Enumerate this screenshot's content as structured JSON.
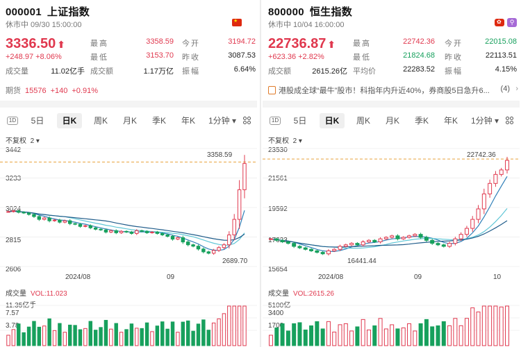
{
  "left": {
    "code": "000001",
    "name": "上证指数",
    "status_time": "休市中 09/30 15:00:00",
    "price": "3336.50",
    "change": "+248.97 +8.06%",
    "stats": [
      {
        "label": "最高",
        "value": "3358.59",
        "color": "red"
      },
      {
        "label": "今开",
        "value": "3194.72",
        "color": "red"
      },
      {
        "label": "最低",
        "value": "3153.70",
        "color": "red"
      },
      {
        "label": "昨收",
        "value": "3087.53",
        "color": "dark"
      },
      {
        "label": "成交量",
        "value": "11.02亿手",
        "color": "dark"
      },
      {
        "label": "成交额",
        "value": "1.17万亿",
        "color": "dark"
      },
      {
        "label": "振幅",
        "value": "6.64%",
        "color": "dark"
      }
    ],
    "futures": {
      "label": "期货",
      "price": "15576",
      "change": "+140",
      "pct": "+0.91%"
    },
    "chart_data": {
      "type": "candlestick",
      "title": "",
      "adjust_label": "不复权",
      "overlay_label": "2",
      "y_ticks": [
        3442,
        3233,
        3024,
        2815,
        2606
      ],
      "x_ticks": [
        "2024/08",
        "09"
      ],
      "annotations": [
        {
          "label": "3358.59",
          "kind": "high"
        },
        {
          "label": "2689.70",
          "kind": "low"
        }
      ],
      "close_series": [
        2995,
        3000,
        2990,
        2985,
        2975,
        2960,
        2940,
        2950,
        2930,
        2935,
        2920,
        2930,
        2910,
        2905,
        2890,
        2895,
        2880,
        2870,
        2865,
        2850,
        2860,
        2845,
        2855,
        2850,
        2840,
        2860,
        2855,
        2845,
        2850,
        2840,
        2830,
        2820,
        2800,
        2810,
        2780,
        2760,
        2750,
        2730,
        2710,
        2700,
        2720,
        2740,
        2760,
        2830,
        2940,
        3150,
        3336
      ],
      "volume": {
        "label": "成交量",
        "vol": "VOL:11.023",
        "y_ticks": [
          "11.35亿手",
          "7.57",
          "3.78"
        ]
      }
    }
  },
  "right": {
    "code": "800000",
    "name": "恒生指数",
    "status_time": "休市中 10/04 16:00:00",
    "price": "22736.87",
    "change": "+623.36 +2.82%",
    "stats": [
      {
        "label": "最高",
        "value": "22742.36",
        "color": "red"
      },
      {
        "label": "今开",
        "value": "22015.08",
        "color": "green"
      },
      {
        "label": "最低",
        "value": "21824.68",
        "color": "green"
      },
      {
        "label": "昨收",
        "value": "22113.51",
        "color": "dark"
      },
      {
        "label": "成交额",
        "value": "2615.26亿",
        "color": "dark"
      },
      {
        "label": "平均价",
        "value": "22283.52",
        "color": "dark"
      },
      {
        "label": "振幅",
        "value": "4.15%",
        "color": "dark"
      }
    ],
    "news": {
      "text": "港股成全球“最牛”股市！科指年内升近40%，券商股5日急升6...",
      "count": "(4)"
    },
    "chart_data": {
      "type": "candlestick",
      "title": "",
      "adjust_label": "不复权",
      "overlay_label": "2",
      "y_ticks": [
        23530,
        21561,
        19592,
        17623,
        15654
      ],
      "x_ticks": [
        "2024/08",
        "09",
        "10"
      ],
      "annotations": [
        {
          "label": "22742.36",
          "kind": "high"
        },
        {
          "label": "16441.44",
          "kind": "low"
        }
      ],
      "close_series": [
        17500,
        17400,
        17300,
        17200,
        17000,
        16900,
        16800,
        16700,
        16600,
        16500,
        16700,
        16800,
        17000,
        17100,
        17200,
        17100,
        17300,
        17400,
        17300,
        17500,
        17600,
        17700,
        17500,
        17600,
        17700,
        17800,
        17600,
        17400,
        17200,
        17100,
        17000,
        17200,
        17500,
        17800,
        18200,
        18800,
        19500,
        20500,
        21200,
        21800,
        22100,
        22736
      ],
      "volume": {
        "label": "成交量",
        "vol": "VOL:2615.26",
        "y_ticks": [
          "5100亿",
          "3400",
          "1700"
        ]
      }
    }
  },
  "tabs": [
    "5日",
    "日K",
    "周K",
    "月K",
    "季K",
    "年K",
    "1分钟"
  ],
  "tab_icon_label": "1D",
  "active_tab": "日K",
  "colors": {
    "up": "#e0384e",
    "down": "#17a05d",
    "ma1": "#2f7fb8",
    "ma2": "#5fc6d6",
    "ma3": "#1f5c8a",
    "dash": "#e8a33c"
  }
}
